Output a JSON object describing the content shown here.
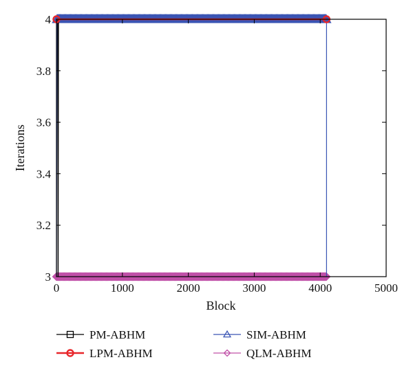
{
  "chart_data": {
    "type": "line",
    "xlabel": "Block",
    "ylabel": "Iterations",
    "xlim": [
      0,
      5000
    ],
    "ylim": [
      3,
      4
    ],
    "x_ticks": [
      0,
      1000,
      2000,
      3000,
      4000,
      5000
    ],
    "y_ticks": [
      3,
      3.2,
      3.4,
      3.6,
      3.8,
      4
    ],
    "x_tick_labels": [
      "0",
      "1000",
      "2000",
      "3000",
      "4000",
      "5000"
    ],
    "y_tick_labels": [
      "3",
      "3.2",
      "3.4",
      "3.6",
      "3.8",
      "4"
    ],
    "grid": false,
    "legend_position": "bottom",
    "series": [
      {
        "name": "PM-ABHM",
        "color": "#000000",
        "marker": "square",
        "description_points": [
          [
            0,
            4
          ],
          [
            20,
            4
          ],
          [
            25,
            3
          ],
          [
            30,
            4
          ],
          [
            4096,
            4
          ]
        ]
      },
      {
        "name": "LPM-ABHM",
        "color": "#e8262a",
        "marker": "circle",
        "description_points": [
          [
            0,
            4
          ],
          [
            4096,
            4
          ]
        ]
      },
      {
        "name": "SIM-ABHM",
        "color": "#3a55b4",
        "marker": "triangle",
        "description_points": [
          [
            0,
            3
          ],
          [
            10,
            4
          ],
          [
            4096,
            4
          ],
          [
            4096,
            3
          ]
        ]
      },
      {
        "name": "QLM-ABHM",
        "color": "#c050a8",
        "marker": "diamond",
        "description_points": [
          [
            0,
            3
          ],
          [
            4096,
            3
          ]
        ]
      }
    ]
  }
}
